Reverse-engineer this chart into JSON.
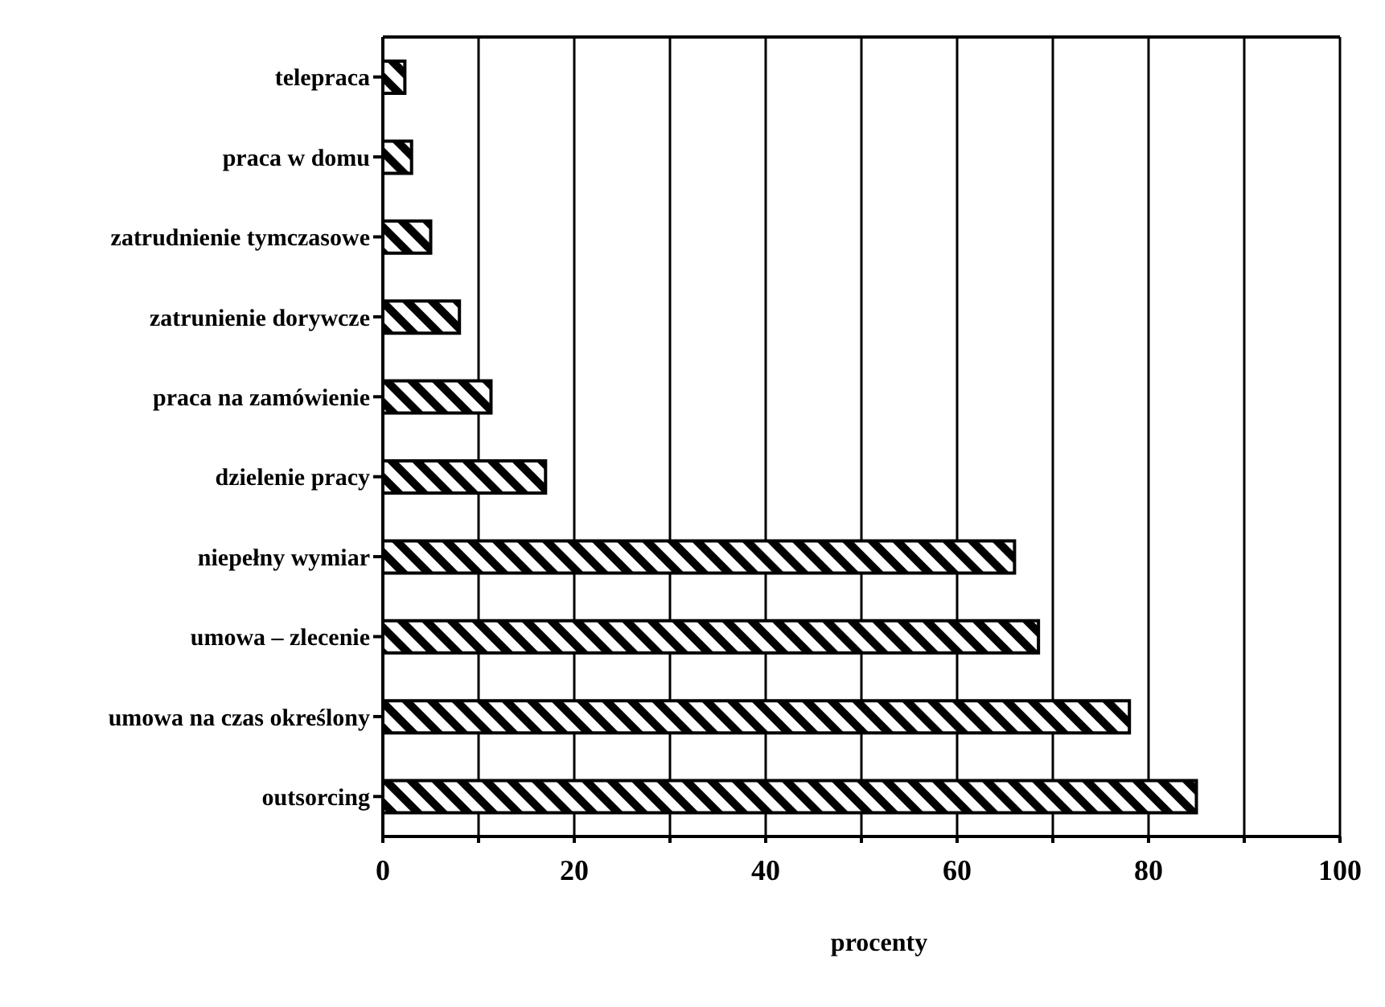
{
  "chart_data": {
    "type": "bar",
    "orientation": "horizontal",
    "xlabel": "procenty",
    "categories": [
      "telepraca",
      "praca w domu",
      "zatrudnienie tymczasowe",
      "zatrunienie dorywcze",
      "praca na zamówienie",
      "dzielenie pracy",
      "niepełny wymiar",
      "umowa – zlecenie",
      "umowa na czas określony",
      "outsorcing"
    ],
    "values": [
      2.3,
      3,
      5,
      8,
      11.3,
      17,
      66,
      68.5,
      78,
      85
    ],
    "color": "#000000",
    "xlim": [
      0,
      100
    ],
    "xticks": [
      0,
      {
        "value": 10,
        "label": null
      },
      20,
      {
        "value": 30,
        "label": null
      },
      40,
      {
        "value": 50,
        "label": null
      },
      60,
      {
        "value": 70,
        "label": null
      },
      80,
      {
        "value": 90,
        "label": null
      },
      100
    ],
    "grid": "x"
  }
}
